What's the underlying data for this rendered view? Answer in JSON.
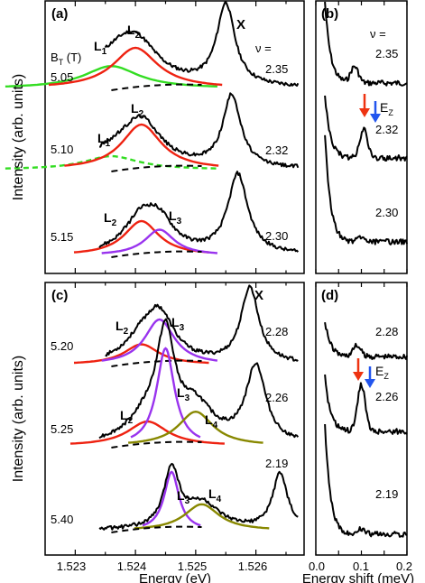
{
  "figure": {
    "y_axis_label": "Intensity (arb. units)",
    "x_axis_left_label": "Energy (eV)",
    "x_axis_right_label": "Energy shift (meV)"
  },
  "colors": {
    "data": "#000000",
    "L1": "#33dd22",
    "L2": "#ee2211",
    "L3": "#9933ee",
    "L4": "#888800",
    "EZ_arrow": "#2255ee",
    "red_arrow": "#ee3311"
  },
  "chart_data": [
    {
      "panel": "a",
      "type": "line",
      "panel_label": "(a)",
      "field_header": "B",
      "field_header_sub": "T",
      "field_header_unit": " (T)",
      "nu_header": "ν =",
      "peak_label": "X",
      "xlim": [
        1.5225,
        1.5268
      ],
      "spectra": [
        {
          "field": "5.05",
          "nu": "2.35",
          "components": [
            {
              "name": "L1",
              "label": "L",
              "sub": "1",
              "center": 1.5236,
              "amp": 0.55,
              "width": 0.00055,
              "style": "solid"
            },
            {
              "name": "L2",
              "label": "L",
              "sub": "2",
              "center": 1.524,
              "amp": 1.0,
              "width": 0.00045,
              "style": "solid"
            }
          ]
        },
        {
          "field": "5.10",
          "nu": "2.32",
          "components": [
            {
              "name": "L1",
              "label": "L",
              "sub": "1",
              "center": 1.5236,
              "amp": 0.3,
              "width": 0.00055,
              "style": "dashed"
            },
            {
              "name": "L2",
              "label": "L",
              "sub": "2",
              "center": 1.5241,
              "amp": 1.0,
              "width": 0.0004,
              "style": "solid"
            }
          ]
        },
        {
          "field": "5.15",
          "nu": "2.30",
          "components": [
            {
              "name": "L2",
              "label": "L",
              "sub": "2",
              "center": 1.5241,
              "amp": 1.0,
              "width": 0.00035,
              "style": "solid"
            },
            {
              "name": "L3",
              "label": "L",
              "sub": "3",
              "center": 1.5244,
              "amp": 0.75,
              "width": 0.0003,
              "style": "solid"
            }
          ]
        }
      ],
      "x_peak": 1.5255
    },
    {
      "panel": "b",
      "type": "line",
      "panel_label": "(b)",
      "nu_header": "ν =",
      "xlim": [
        0.0,
        0.2
      ],
      "spectra_nu": [
        "2.35",
        "2.32",
        "2.30"
      ],
      "arrow_label": "E",
      "arrow_label_sub": "Z"
    },
    {
      "panel": "c",
      "type": "line",
      "panel_label": "(c)",
      "peak_label": "X",
      "xlabel": "Energy (eV)",
      "xticks": [
        "1.523",
        "1.524",
        "1.525",
        "1.526"
      ],
      "xlim": [
        1.5225,
        1.5268
      ],
      "spectra": [
        {
          "field": "5.20",
          "nu": "2.28",
          "components": [
            {
              "name": "L2",
              "label": "L",
              "sub": "2",
              "center": 1.5241,
              "amp": 0.45,
              "width": 0.00035,
              "style": "solid"
            },
            {
              "name": "L3",
              "label": "L",
              "sub": "3",
              "center": 1.5244,
              "amp": 1.0,
              "width": 0.0003,
              "style": "solid"
            }
          ]
        },
        {
          "field": "5.25",
          "nu": "2.26",
          "components": [
            {
              "name": "L2",
              "label": "L",
              "sub": "2",
              "center": 1.5242,
              "amp": 0.25,
              "width": 0.0004,
              "style": "solid"
            },
            {
              "name": "L3",
              "label": "L",
              "sub": "3",
              "center": 1.5245,
              "amp": 1.0,
              "width": 0.00018,
              "style": "solid"
            },
            {
              "name": "L4",
              "label": "L",
              "sub": "4",
              "center": 1.525,
              "amp": 0.35,
              "width": 0.00035,
              "style": "solid"
            }
          ]
        },
        {
          "field": "5.40",
          "nu": "2.19",
          "components": [
            {
              "name": "L3",
              "label": "L",
              "sub": "3",
              "center": 1.5246,
              "amp": 1.0,
              "width": 0.00015,
              "style": "solid"
            },
            {
              "name": "L4",
              "label": "L",
              "sub": "4",
              "center": 1.5251,
              "amp": 0.45,
              "width": 0.00035,
              "style": "solid"
            }
          ]
        }
      ]
    },
    {
      "panel": "d",
      "type": "line",
      "panel_label": "(d)",
      "xlabel": "Energy shift (meV)",
      "xticks": [
        "0.0",
        "0.1",
        "0.2"
      ],
      "xlim": [
        0.0,
        0.2
      ],
      "spectra_nu": [
        "2.28",
        "2.26",
        "2.19"
      ],
      "arrow_label": "E",
      "arrow_label_sub": "Z"
    }
  ]
}
